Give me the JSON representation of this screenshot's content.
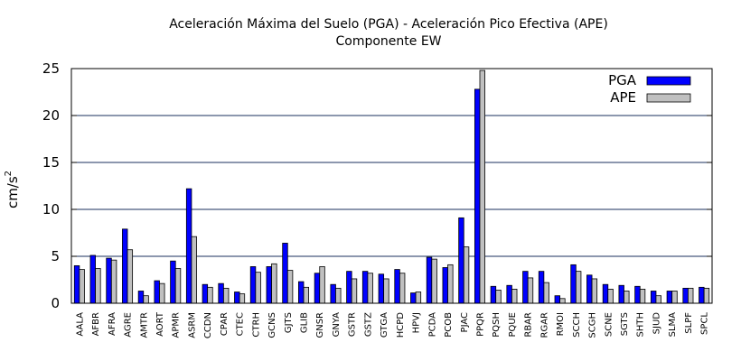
{
  "chart_data": {
    "type": "bar",
    "title": "Aceleración Máxima del Suelo (PGA) -  Aceleración Pico Efectiva (APE)",
    "subtitle": "Componente EW",
    "ylabel": "cm/s",
    "ylabel_superscript": "2",
    "xlabel": "",
    "ylim": [
      0,
      25
    ],
    "yticks": [
      "0",
      "5",
      "10",
      "15",
      "20",
      "25"
    ],
    "grid": "horizontal",
    "legend_position": "top-right",
    "categories": [
      "AALA",
      "AFBR",
      "AFRA",
      "AGRE",
      "AMTR",
      "AORT",
      "APMR",
      "ASRM",
      "CCDN",
      "CPAR",
      "CTEC",
      "CTRH",
      "GCNS",
      "GJTS",
      "GLIB",
      "GNSR",
      "GNYA",
      "GSTR",
      "GSTZ",
      "GTGA",
      "HCPD",
      "HPVJ",
      "PCDA",
      "PCOB",
      "PJAC",
      "PPQR",
      "PQSH",
      "PQUE",
      "RBAR",
      "RGAR",
      "RMOI",
      "SCCH",
      "SCGH",
      "SCNE",
      "SGTS",
      "SHTH",
      "SJUD",
      "SLMA",
      "SLPF",
      "SPCL"
    ],
    "series": [
      {
        "name": "PGA",
        "color": "#0000ff",
        "values": [
          4.0,
          5.1,
          4.8,
          7.9,
          1.3,
          2.4,
          4.5,
          12.2,
          2.0,
          2.1,
          1.2,
          3.9,
          3.9,
          6.4,
          2.3,
          3.2,
          2.0,
          3.4,
          3.4,
          3.1,
          3.6,
          1.1,
          4.9,
          3.8,
          9.1,
          22.8,
          1.8,
          1.9,
          3.4,
          3.4,
          0.8,
          4.1,
          3.0,
          2.0,
          1.9,
          1.8,
          1.3,
          1.3,
          1.6,
          1.7
        ]
      },
      {
        "name": "APE",
        "color": "#c0c0c0",
        "values": [
          3.6,
          3.7,
          4.6,
          5.7,
          0.8,
          2.1,
          3.7,
          7.1,
          1.7,
          1.6,
          1.0,
          3.3,
          4.2,
          3.5,
          1.7,
          3.9,
          1.6,
          2.6,
          3.2,
          2.6,
          3.2,
          1.2,
          4.7,
          4.1,
          6.0,
          24.8,
          1.4,
          1.5,
          2.7,
          2.2,
          0.5,
          3.4,
          2.6,
          1.5,
          1.3,
          1.5,
          0.8,
          1.3,
          1.6,
          1.6
        ]
      }
    ]
  }
}
